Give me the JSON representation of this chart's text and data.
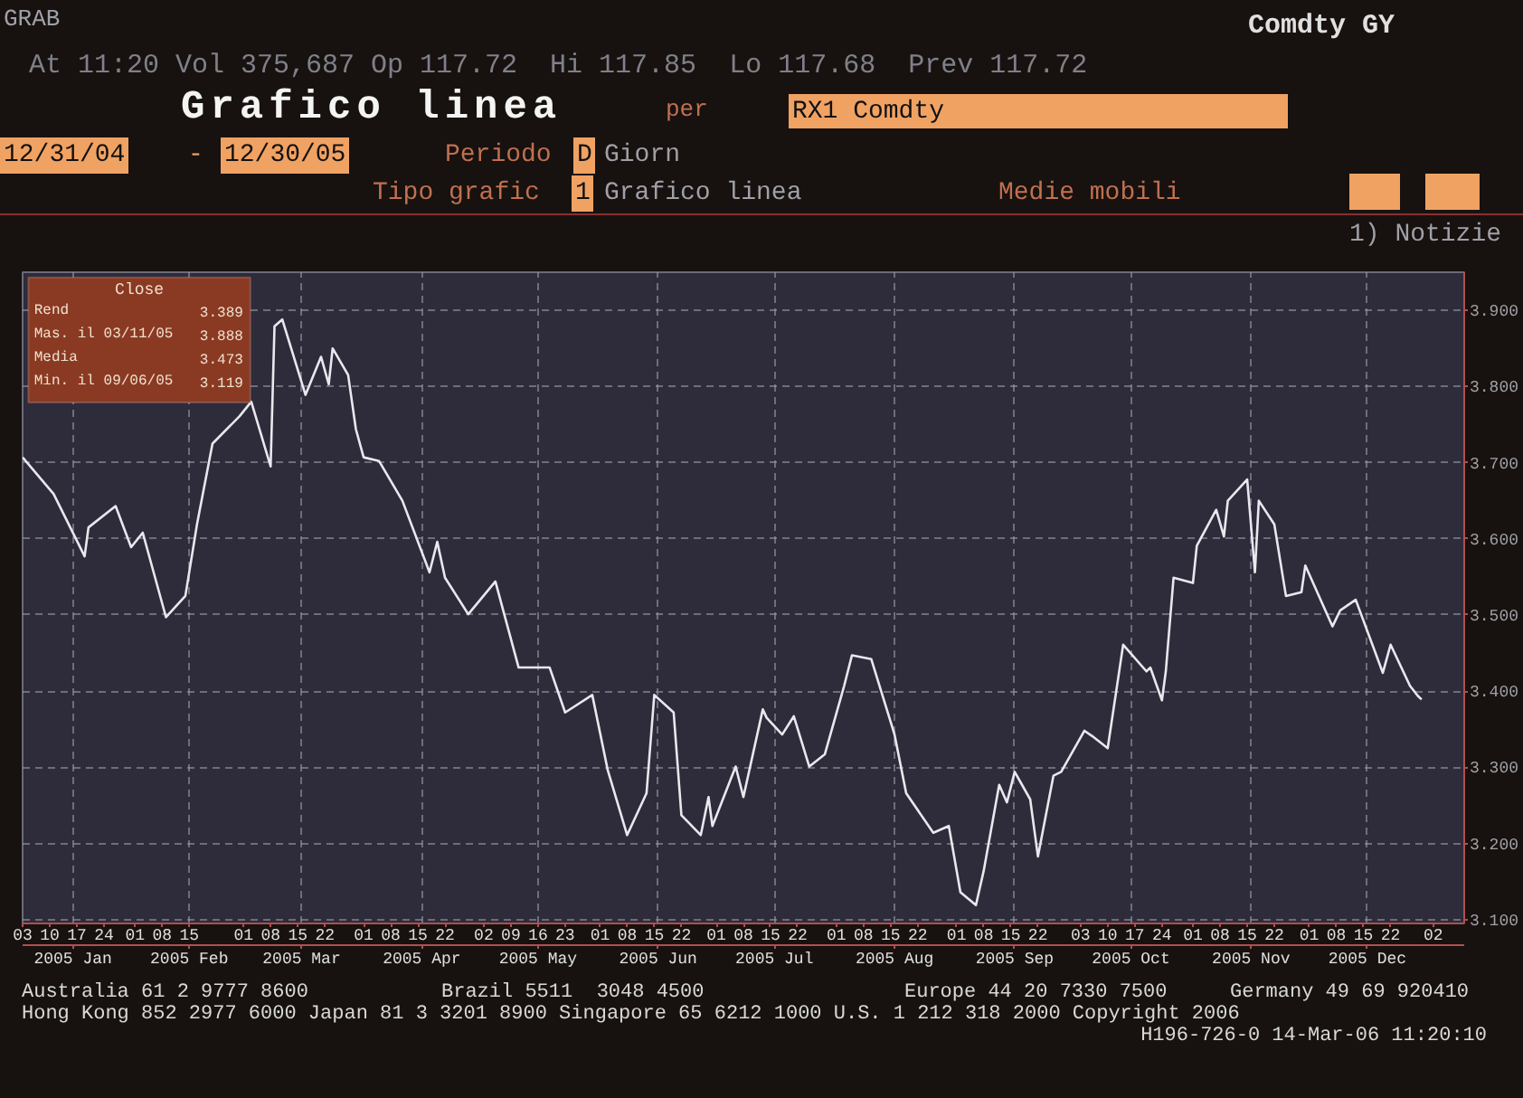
{
  "chart_data": {
    "type": "line",
    "title": "Grafico linea",
    "annotations": [
      "GRAB",
      "Comdty GY",
      "At 11:20 Vol 375,687 Op 117.72  Hi 117.85  Lo 117.68  Prev 117.72",
      "per",
      "RX1 Comdty",
      "12/31/04",
      "-",
      "12/30/05",
      "Periodo",
      "D",
      "Giorn",
      "Tipo grafic",
      "1",
      "Grafico linea",
      "Medie mobili",
      "1) Notizie",
      "Close",
      "Rend",
      "3.389",
      "Mas. il 03/11/05",
      "3.888",
      "Media",
      "3.473",
      "Min. il 09/06/05",
      "3.119",
      "Australia 61 2 9777 8600",
      "Brazil 5511  3048 4500",
      "Europe 44 20 7330 7500",
      "Germany 49 69 920410",
      "Hong Kong 852 2977 6000 Japan 81 3 3201 8900 Singapore 65 6212 1000 U.S. 1 212 318 2000 Copyright 2006",
      "H196-726-0 14-Mar-06 11:20:10"
    ],
    "x": [
      "2005-01-03",
      "2005-01-11",
      "2005-01-19",
      "2005-01-20",
      "2005-01-27",
      "2005-01-31",
      "2005-02-03",
      "2005-02-09",
      "2005-02-14",
      "2005-02-17",
      "2005-02-21",
      "2005-02-28",
      "2005-03-03",
      "2005-03-08",
      "2005-03-09",
      "2005-03-11",
      "2005-03-17",
      "2005-03-21",
      "2005-03-23",
      "2005-03-24",
      "2005-03-28",
      "2005-03-30",
      "2005-04-01",
      "2005-04-05",
      "2005-04-11",
      "2005-04-18",
      "2005-04-20",
      "2005-04-22",
      "2005-04-28",
      "2005-05-05",
      "2005-05-11",
      "2005-05-19",
      "2005-05-23",
      "2005-05-30",
      "2005-06-03",
      "2005-06-08",
      "2005-06-13",
      "2005-06-15",
      "2005-06-20",
      "2005-06-22",
      "2005-06-27",
      "2005-06-29",
      "2005-06-30",
      "2005-07-06",
      "2005-07-08",
      "2005-07-13",
      "2005-07-14",
      "2005-07-18",
      "2005-07-21",
      "2005-07-25",
      "2005-07-29",
      "2005-08-03",
      "2005-08-05",
      "2005-08-10",
      "2005-08-16",
      "2005-08-19",
      "2005-08-26",
      "2005-08-30",
      "2005-09-02",
      "2005-09-06",
      "2005-09-08",
      "2005-09-12",
      "2005-09-14",
      "2005-09-16",
      "2005-09-20",
      "2005-09-22",
      "2005-09-26",
      "2005-09-28",
      "2005-10-04",
      "2005-10-06",
      "2005-10-10",
      "2005-10-14",
      "2005-10-20",
      "2005-10-21",
      "2005-10-24",
      "2005-10-25",
      "2005-10-27",
      "2005-11-01",
      "2005-11-02",
      "2005-11-07",
      "2005-11-09",
      "2005-11-10",
      "2005-11-15",
      "2005-11-17",
      "2005-11-18",
      "2005-11-22",
      "2005-11-25",
      "2005-11-29",
      "2005-11-30",
      "2005-12-07",
      "2005-12-09",
      "2005-12-13",
      "2005-12-20",
      "2005-12-22",
      "2005-12-27",
      "2005-12-29",
      "2005-12-30"
    ],
    "series": [
      {
        "color": "#e8e8ee",
        "values": [
          3.707,
          3.659,
          3.577,
          3.615,
          3.643,
          3.589,
          3.608,
          3.497,
          3.525,
          3.619,
          3.725,
          3.761,
          3.78,
          3.695,
          3.879,
          3.888,
          3.789,
          3.839,
          3.803,
          3.85,
          3.815,
          3.744,
          3.707,
          3.702,
          3.65,
          3.556,
          3.596,
          3.549,
          3.501,
          3.544,
          3.431,
          3.431,
          3.372,
          3.395,
          3.296,
          3.211,
          3.266,
          3.395,
          3.372,
          3.237,
          3.211,
          3.261,
          3.223,
          3.301,
          3.261,
          3.376,
          3.365,
          3.343,
          3.367,
          3.301,
          3.317,
          3.407,
          3.447,
          3.442,
          3.343,
          3.266,
          3.214,
          3.223,
          3.136,
          3.119,
          3.164,
          3.277,
          3.254,
          3.294,
          3.258,
          3.183,
          3.289,
          3.294,
          3.348,
          3.341,
          3.325,
          3.461,
          3.426,
          3.431,
          3.388,
          3.426,
          3.549,
          3.542,
          3.591,
          3.638,
          3.603,
          3.65,
          3.678,
          3.556,
          3.65,
          3.619,
          3.525,
          3.53,
          3.565,
          3.485,
          3.506,
          3.52,
          3.424,
          3.461,
          3.407,
          3.394,
          3.389
        ]
      }
    ],
    "xlim": [
      "2005-01-03",
      "2006-01-10"
    ],
    "ylim": [
      3.095,
      3.95
    ],
    "yticks": [
      {
        "value": 3.1,
        "label": "3.100"
      },
      {
        "value": 3.2,
        "label": "3.200"
      },
      {
        "value": 3.3,
        "label": "3.300"
      },
      {
        "value": 3.4,
        "label": "3.400"
      },
      {
        "value": 3.5,
        "label": "3.500"
      },
      {
        "value": 3.6,
        "label": "3.600"
      },
      {
        "value": 3.7,
        "label": "3.700"
      },
      {
        "value": 3.8,
        "label": "3.800"
      },
      {
        "value": 3.9,
        "label": "3.900"
      }
    ],
    "xticks": [
      {
        "value": "2005-01-03",
        "label": "03"
      },
      {
        "value": "2005-01-10",
        "label": "10"
      },
      {
        "value": "2005-01-17",
        "label": "17"
      },
      {
        "value": "2005-01-24",
        "label": "24"
      },
      {
        "value": "2005-02-01",
        "label": "01"
      },
      {
        "value": "2005-02-08",
        "label": "08"
      },
      {
        "value": "2005-02-15",
        "label": "15"
      },
      {
        "value": "2005-03-01",
        "label": "01"
      },
      {
        "value": "2005-03-08",
        "label": "08"
      },
      {
        "value": "2005-03-15",
        "label": "15"
      },
      {
        "value": "2005-03-22",
        "label": "22"
      },
      {
        "value": "2005-04-01",
        "label": "01"
      },
      {
        "value": "2005-04-08",
        "label": "08"
      },
      {
        "value": "2005-04-15",
        "label": "15"
      },
      {
        "value": "2005-04-22",
        "label": "22"
      },
      {
        "value": "2005-05-02",
        "label": "02"
      },
      {
        "value": "2005-05-09",
        "label": "09"
      },
      {
        "value": "2005-05-16",
        "label": "16"
      },
      {
        "value": "2005-05-23",
        "label": "23"
      },
      {
        "value": "2005-06-01",
        "label": "01"
      },
      {
        "value": "2005-06-08",
        "label": "08"
      },
      {
        "value": "2005-06-15",
        "label": "15"
      },
      {
        "value": "2005-06-22",
        "label": "22"
      },
      {
        "value": "2005-07-01",
        "label": "01"
      },
      {
        "value": "2005-07-08",
        "label": "08"
      },
      {
        "value": "2005-07-15",
        "label": "15"
      },
      {
        "value": "2005-07-22",
        "label": "22"
      },
      {
        "value": "2005-08-01",
        "label": "01"
      },
      {
        "value": "2005-08-08",
        "label": "08"
      },
      {
        "value": "2005-08-15",
        "label": "15"
      },
      {
        "value": "2005-08-22",
        "label": "22"
      },
      {
        "value": "2005-09-01",
        "label": "01"
      },
      {
        "value": "2005-09-08",
        "label": "08"
      },
      {
        "value": "2005-09-15",
        "label": "15"
      },
      {
        "value": "2005-09-22",
        "label": "22"
      },
      {
        "value": "2005-10-03",
        "label": "03"
      },
      {
        "value": "2005-10-10",
        "label": "10"
      },
      {
        "value": "2005-10-17",
        "label": "17"
      },
      {
        "value": "2005-10-24",
        "label": "24"
      },
      {
        "value": "2005-11-01",
        "label": "01"
      },
      {
        "value": "2005-11-08",
        "label": "08"
      },
      {
        "value": "2005-11-15",
        "label": "15"
      },
      {
        "value": "2005-11-22",
        "label": "22"
      },
      {
        "value": "2005-12-01",
        "label": "01"
      },
      {
        "value": "2005-12-08",
        "label": "08"
      },
      {
        "value": "2005-12-15",
        "label": "15"
      },
      {
        "value": "2005-12-22",
        "label": "22"
      },
      {
        "value": "2006-01-02",
        "label": "02"
      }
    ],
    "x2lim": [
      "2005-01-03",
      "2006-01-10"
    ],
    "x2ticks": [
      {
        "value": "2005-01-16",
        "label": "2005 Jan"
      },
      {
        "value": "2005-02-15",
        "label": "2005 Feb"
      },
      {
        "value": "2005-03-16",
        "label": "2005 Mar"
      },
      {
        "value": "2005-04-16",
        "label": "2005 Apr"
      },
      {
        "value": "2005-05-16",
        "label": "2005 May"
      },
      {
        "value": "2005-06-16",
        "label": "2005 Jun"
      },
      {
        "value": "2005-07-16",
        "label": "2005 Jul"
      },
      {
        "value": "2005-08-16",
        "label": "2005 Aug"
      },
      {
        "value": "2005-09-16",
        "label": "2005 Sep"
      },
      {
        "value": "2005-10-16",
        "label": "2005 Oct"
      },
      {
        "value": "2005-11-16",
        "label": "2005 Nov"
      },
      {
        "value": "2005-12-16",
        "label": "2005 Dec"
      }
    ],
    "grid": true
  }
}
